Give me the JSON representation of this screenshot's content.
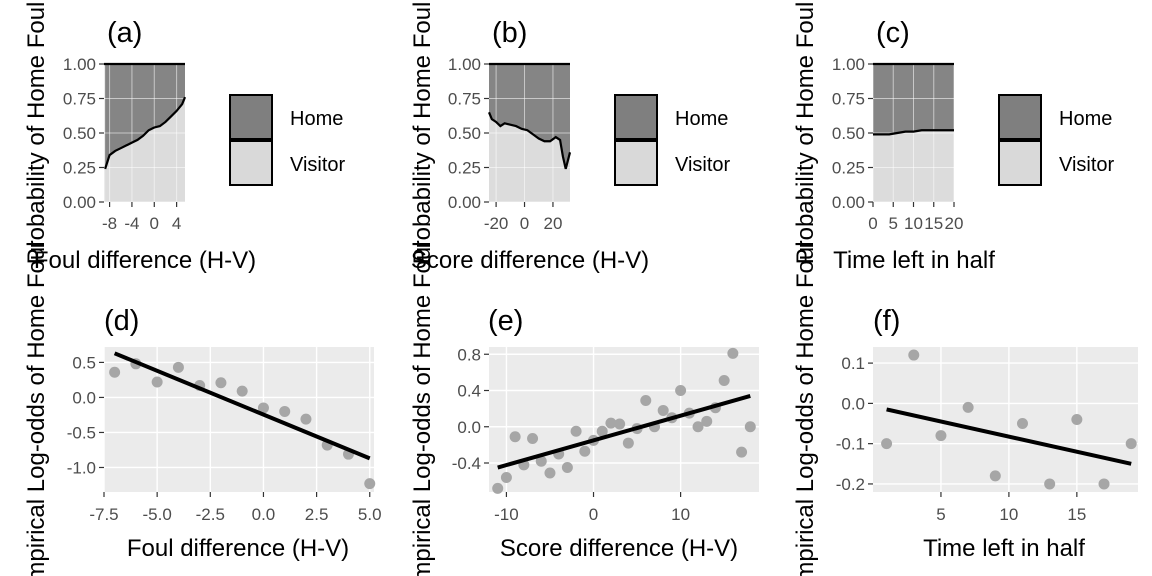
{
  "colors": {
    "home": "#7f7f7f",
    "visitor": "#d9d9d9",
    "panel_bg": "#ebebeb",
    "points": "#a6a6a6",
    "line": "#000000"
  },
  "legend": {
    "items": [
      {
        "label": "Home",
        "color": "#7f7f7f"
      },
      {
        "label": "Visitor",
        "color": "#d9d9d9"
      }
    ]
  },
  "chart_data": [
    {
      "id": "a",
      "tag": "(a)",
      "type": "area",
      "xlabel": "Foul difference (H-V)",
      "ylabel": "Probability of Home Foul",
      "xlim": [
        -9,
        5.5
      ],
      "ylim": [
        0,
        1
      ],
      "xticks": [
        {
          "v": -8,
          "label": "-8"
        },
        {
          "v": -4,
          "label": "-4"
        },
        {
          "v": 0,
          "label": "0"
        },
        {
          "v": 4,
          "label": "4"
        }
      ],
      "yticks": [
        {
          "v": 0,
          "label": "0.00"
        },
        {
          "v": 0.25,
          "label": "0.25"
        },
        {
          "v": 0.5,
          "label": "0.50"
        },
        {
          "v": 0.75,
          "label": "0.75"
        },
        {
          "v": 1,
          "label": "1.00"
        }
      ],
      "x": [
        -8.8,
        -8,
        -7,
        -6,
        -5,
        -4,
        -3,
        -2,
        -1,
        0,
        1,
        2,
        3,
        4,
        5,
        5.5
      ],
      "home_prob": [
        0.24,
        0.34,
        0.37,
        0.39,
        0.41,
        0.43,
        0.45,
        0.48,
        0.52,
        0.54,
        0.55,
        0.58,
        0.62,
        0.66,
        0.71,
        0.76
      ],
      "series_labels": [
        "Home",
        "Visitor"
      ]
    },
    {
      "id": "b",
      "tag": "(b)",
      "type": "area",
      "xlabel": "Score difference (H-V)",
      "ylabel": "Probability of Home Foul",
      "xlim": [
        -25,
        32
      ],
      "ylim": [
        0,
        1
      ],
      "xticks": [
        {
          "v": -20,
          "label": "-20"
        },
        {
          "v": 0,
          "label": "0"
        },
        {
          "v": 20,
          "label": "20"
        }
      ],
      "yticks": [
        {
          "v": 0,
          "label": "0.00"
        },
        {
          "v": 0.25,
          "label": "0.25"
        },
        {
          "v": 0.5,
          "label": "0.50"
        },
        {
          "v": 0.75,
          "label": "0.75"
        },
        {
          "v": 1,
          "label": "1.00"
        }
      ],
      "x": [
        -25,
        -23,
        -20,
        -17,
        -14,
        -10,
        -6,
        -2,
        2,
        6,
        10,
        14,
        18,
        22,
        25,
        27,
        29,
        32
      ],
      "home_prob": [
        0.65,
        0.6,
        0.58,
        0.55,
        0.57,
        0.56,
        0.55,
        0.53,
        0.52,
        0.49,
        0.46,
        0.44,
        0.44,
        0.47,
        0.45,
        0.33,
        0.24,
        0.36
      ],
      "series_labels": [
        "Home",
        "Visitor"
      ]
    },
    {
      "id": "c",
      "tag": "(c)",
      "type": "area",
      "xlabel": "Time left in half",
      "ylabel": "Probability of Home Foul",
      "xlim": [
        0,
        20
      ],
      "ylim": [
        0,
        1
      ],
      "xticks": [
        {
          "v": 0,
          "label": "0"
        },
        {
          "v": 5,
          "label": "5"
        },
        {
          "v": 10,
          "label": "10"
        },
        {
          "v": 15,
          "label": "15"
        },
        {
          "v": 20,
          "label": "20"
        }
      ],
      "yticks": [
        {
          "v": 0,
          "label": "0.00"
        },
        {
          "v": 0.25,
          "label": "0.25"
        },
        {
          "v": 0.5,
          "label": "0.50"
        },
        {
          "v": 0.75,
          "label": "0.75"
        },
        {
          "v": 1,
          "label": "1.00"
        }
      ],
      "x": [
        0,
        2,
        4,
        6,
        8,
        10,
        12,
        14,
        16,
        18,
        20
      ],
      "home_prob": [
        0.49,
        0.49,
        0.49,
        0.5,
        0.51,
        0.51,
        0.52,
        0.52,
        0.52,
        0.52,
        0.52
      ],
      "series_labels": [
        "Home",
        "Visitor"
      ]
    },
    {
      "id": "d",
      "tag": "(d)",
      "type": "scatter",
      "xlabel": "Foul difference (H-V)",
      "ylabel": "Empirical Log-odds of Home Foul",
      "xlim": [
        -7.5,
        5.2
      ],
      "ylim": [
        -1.35,
        0.72
      ],
      "xticks": [
        {
          "v": -7.5,
          "label": "-7.5"
        },
        {
          "v": -5,
          "label": "-5.0"
        },
        {
          "v": -2.5,
          "label": "-2.5"
        },
        {
          "v": 0,
          "label": "0.0"
        },
        {
          "v": 2.5,
          "label": "2.5"
        },
        {
          "v": 5,
          "label": "5.0"
        }
      ],
      "yticks": [
        {
          "v": 0.5,
          "label": "0.5"
        },
        {
          "v": 0,
          "label": "0.0"
        },
        {
          "v": -0.5,
          "label": "-0.5"
        },
        {
          "v": -1,
          "label": "-1.0"
        }
      ],
      "points": [
        [
          -7,
          0.36
        ],
        [
          -6,
          0.48
        ],
        [
          -5,
          0.22
        ],
        [
          -4,
          0.43
        ],
        [
          -3,
          0.17
        ],
        [
          -2,
          0.21
        ],
        [
          -1,
          0.09
        ],
        [
          0,
          -0.15
        ],
        [
          1,
          -0.2
        ],
        [
          2,
          -0.31
        ],
        [
          3,
          -0.68
        ],
        [
          4,
          -0.81
        ],
        [
          5,
          -1.23
        ]
      ],
      "fit_line": [
        [
          -7,
          0.63
        ],
        [
          5,
          -0.87
        ]
      ]
    },
    {
      "id": "e",
      "tag": "(e)",
      "type": "scatter",
      "xlabel": "Score difference (H-V)",
      "ylabel": "Empirical Log-odds of Home Foul",
      "xlim": [
        -12,
        19
      ],
      "ylim": [
        -0.72,
        0.88
      ],
      "xticks": [
        {
          "v": -10,
          "label": "-10"
        },
        {
          "v": 0,
          "label": "0"
        },
        {
          "v": 10,
          "label": "10"
        }
      ],
      "yticks": [
        {
          "v": 0.8,
          "label": "0.8"
        },
        {
          "v": 0.4,
          "label": "0.4"
        },
        {
          "v": 0,
          "label": "0.0"
        },
        {
          "v": -0.4,
          "label": "-0.4"
        }
      ],
      "points": [
        [
          -11,
          -0.68
        ],
        [
          -10,
          -0.56
        ],
        [
          -9,
          -0.11
        ],
        [
          -8,
          -0.42
        ],
        [
          -7,
          -0.13
        ],
        [
          -6,
          -0.38
        ],
        [
          -5,
          -0.51
        ],
        [
          -4,
          -0.3
        ],
        [
          -3,
          -0.45
        ],
        [
          -2,
          -0.05
        ],
        [
          -1,
          -0.27
        ],
        [
          0,
          -0.15
        ],
        [
          1,
          -0.05
        ],
        [
          2,
          0.04
        ],
        [
          3,
          0.03
        ],
        [
          4,
          -0.18
        ],
        [
          5,
          -0.02
        ],
        [
          6,
          0.29
        ],
        [
          7,
          0.0
        ],
        [
          8,
          0.18
        ],
        [
          9,
          0.1
        ],
        [
          10,
          0.4
        ],
        [
          11,
          0.15
        ],
        [
          12,
          -0.0
        ],
        [
          13,
          0.06
        ],
        [
          14,
          0.21
        ],
        [
          15,
          0.51
        ],
        [
          16,
          0.81
        ],
        [
          17,
          -0.28
        ],
        [
          18,
          0.0
        ]
      ],
      "fit_line": [
        [
          -11,
          -0.45
        ],
        [
          18,
          0.34
        ]
      ]
    },
    {
      "id": "f",
      "tag": "(f)",
      "type": "scatter",
      "xlabel": "Time left in half",
      "ylabel": "Empirical Log-odds of Home Foul",
      "xlim": [
        0,
        19.5
      ],
      "ylim": [
        -0.22,
        0.14
      ],
      "xticks": [
        {
          "v": 5,
          "label": "5"
        },
        {
          "v": 10,
          "label": "10"
        },
        {
          "v": 15,
          "label": "15"
        }
      ],
      "yticks": [
        {
          "v": 0.1,
          "label": "0.1"
        },
        {
          "v": 0,
          "label": "0.0"
        },
        {
          "v": -0.1,
          "label": "-0.1"
        },
        {
          "v": -0.2,
          "label": "-0.2"
        }
      ],
      "points": [
        [
          1,
          -0.1
        ],
        [
          3,
          0.12
        ],
        [
          5,
          -0.08
        ],
        [
          7,
          -0.01
        ],
        [
          9,
          -0.18
        ],
        [
          11,
          -0.05
        ],
        [
          13,
          -0.2
        ],
        [
          15,
          -0.04
        ],
        [
          17,
          -0.2
        ],
        [
          19,
          -0.1
        ]
      ],
      "fit_line": [
        [
          1,
          -0.015
        ],
        [
          19,
          -0.15
        ]
      ]
    }
  ]
}
